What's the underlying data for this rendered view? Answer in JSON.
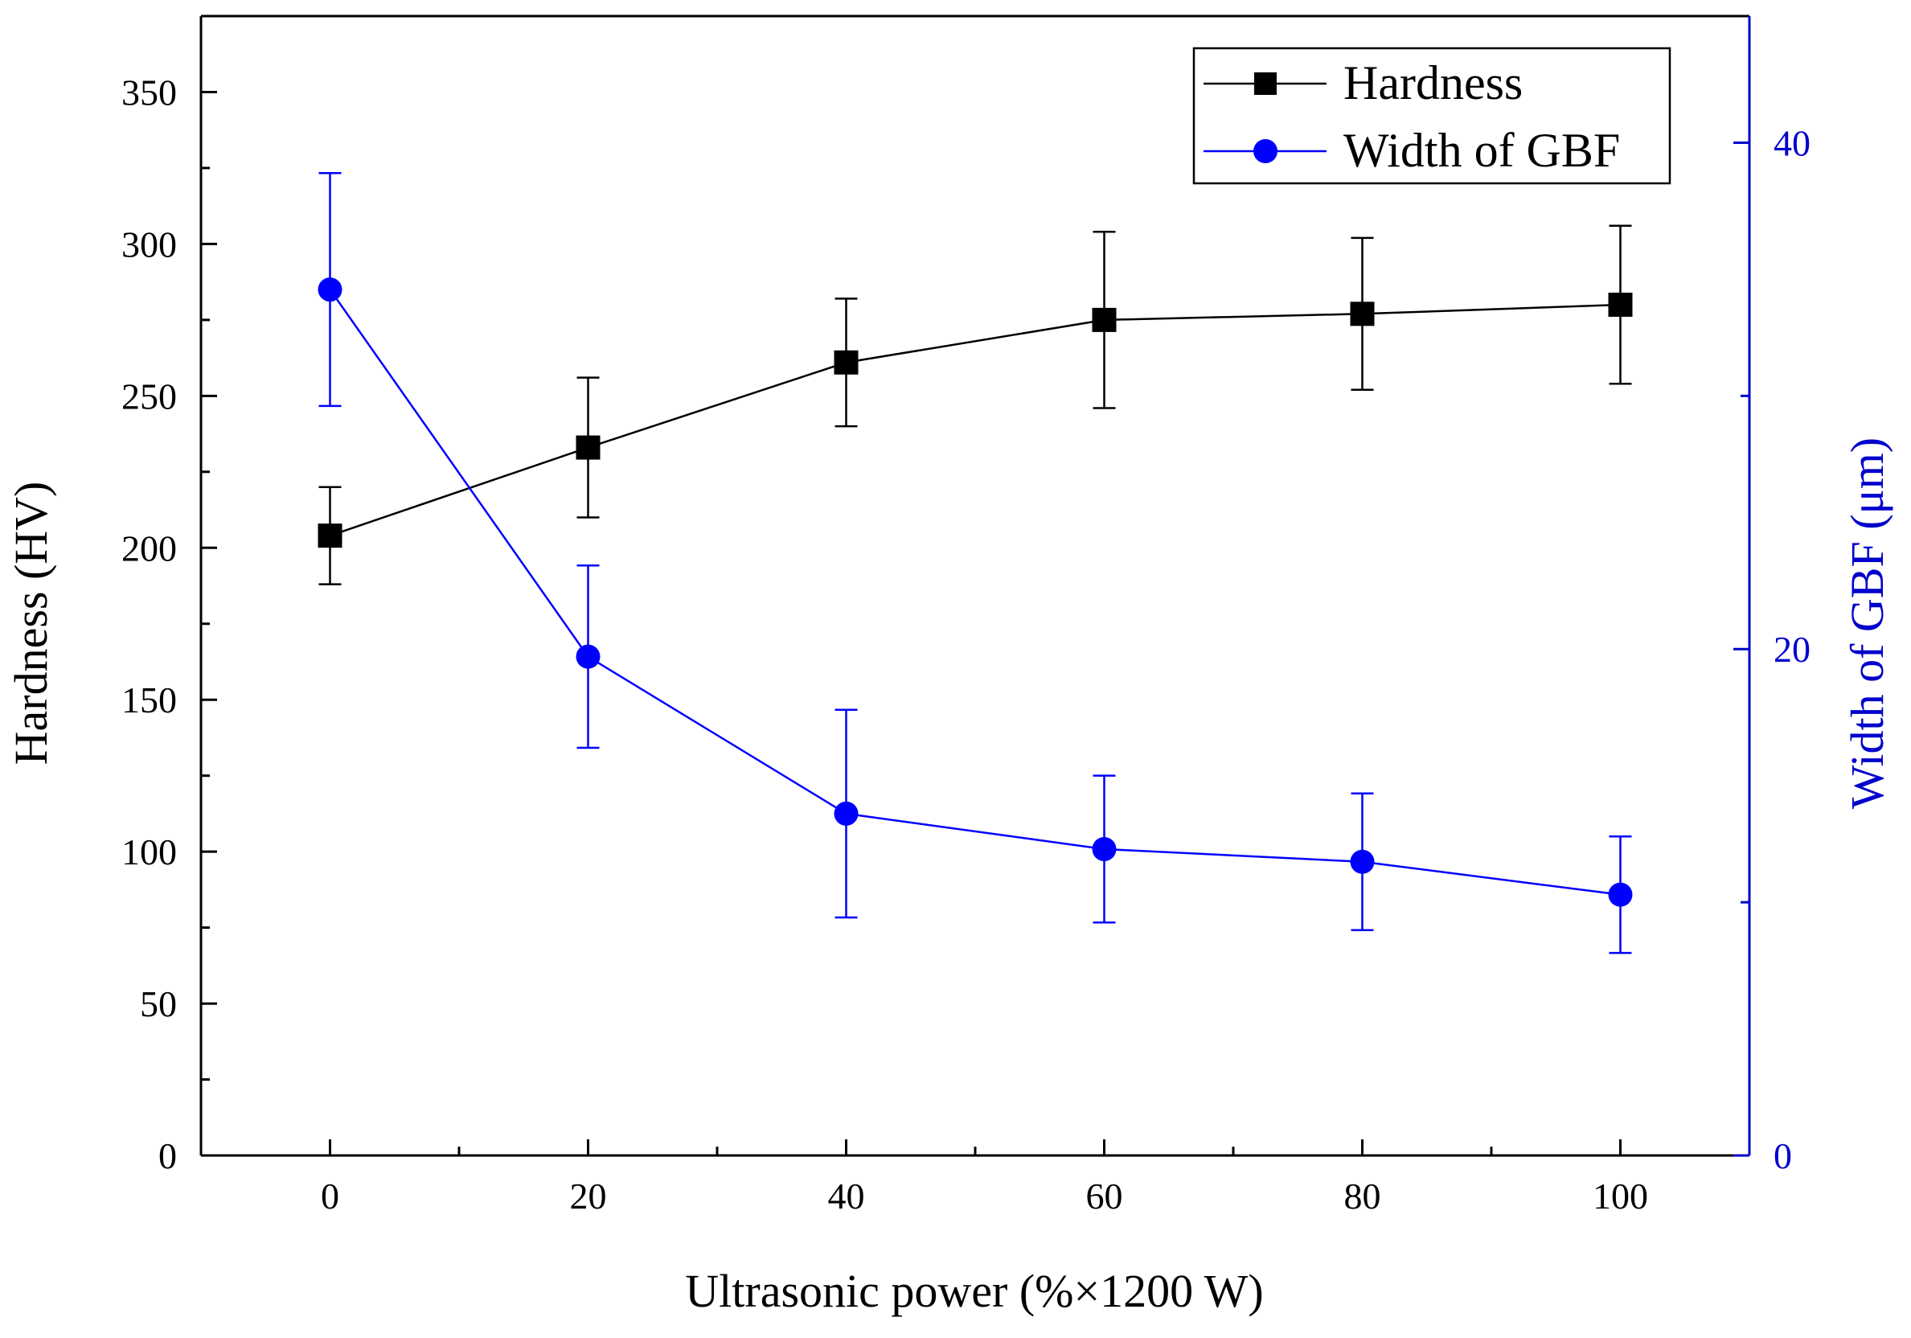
{
  "chart_data": {
    "type": "line",
    "title": "",
    "xlabel": "Ultrasonic power (%×1200 W)",
    "ylabel": "Hardness (HV)",
    "y2label": "Width of GBF (μm)",
    "x": [
      0,
      20,
      40,
      60,
      80,
      100
    ],
    "xlim": [
      -10,
      110
    ],
    "ylim": [
      0,
      375
    ],
    "y2lim": [
      0,
      45
    ],
    "xticks": [
      0,
      20,
      40,
      60,
      80,
      100
    ],
    "yticks": [
      0,
      50,
      100,
      150,
      200,
      250,
      300,
      350
    ],
    "y2ticks": [
      0,
      20,
      40
    ],
    "grid": false,
    "legend_position": "top-right",
    "series": [
      {
        "name": "Hardness",
        "axis": "left",
        "marker": "square",
        "color": "#000000",
        "values": [
          204,
          233,
          261,
          275,
          277,
          280
        ],
        "error": [
          16,
          23,
          21,
          29,
          25,
          26
        ]
      },
      {
        "name": "Width of GBF",
        "axis": "right",
        "marker": "circle",
        "color": "#0000ff",
        "values": [
          34.2,
          19.7,
          13.5,
          12.1,
          11.6,
          10.3
        ],
        "error": [
          4.6,
          3.6,
          4.1,
          2.9,
          2.7,
          2.3
        ]
      }
    ]
  }
}
